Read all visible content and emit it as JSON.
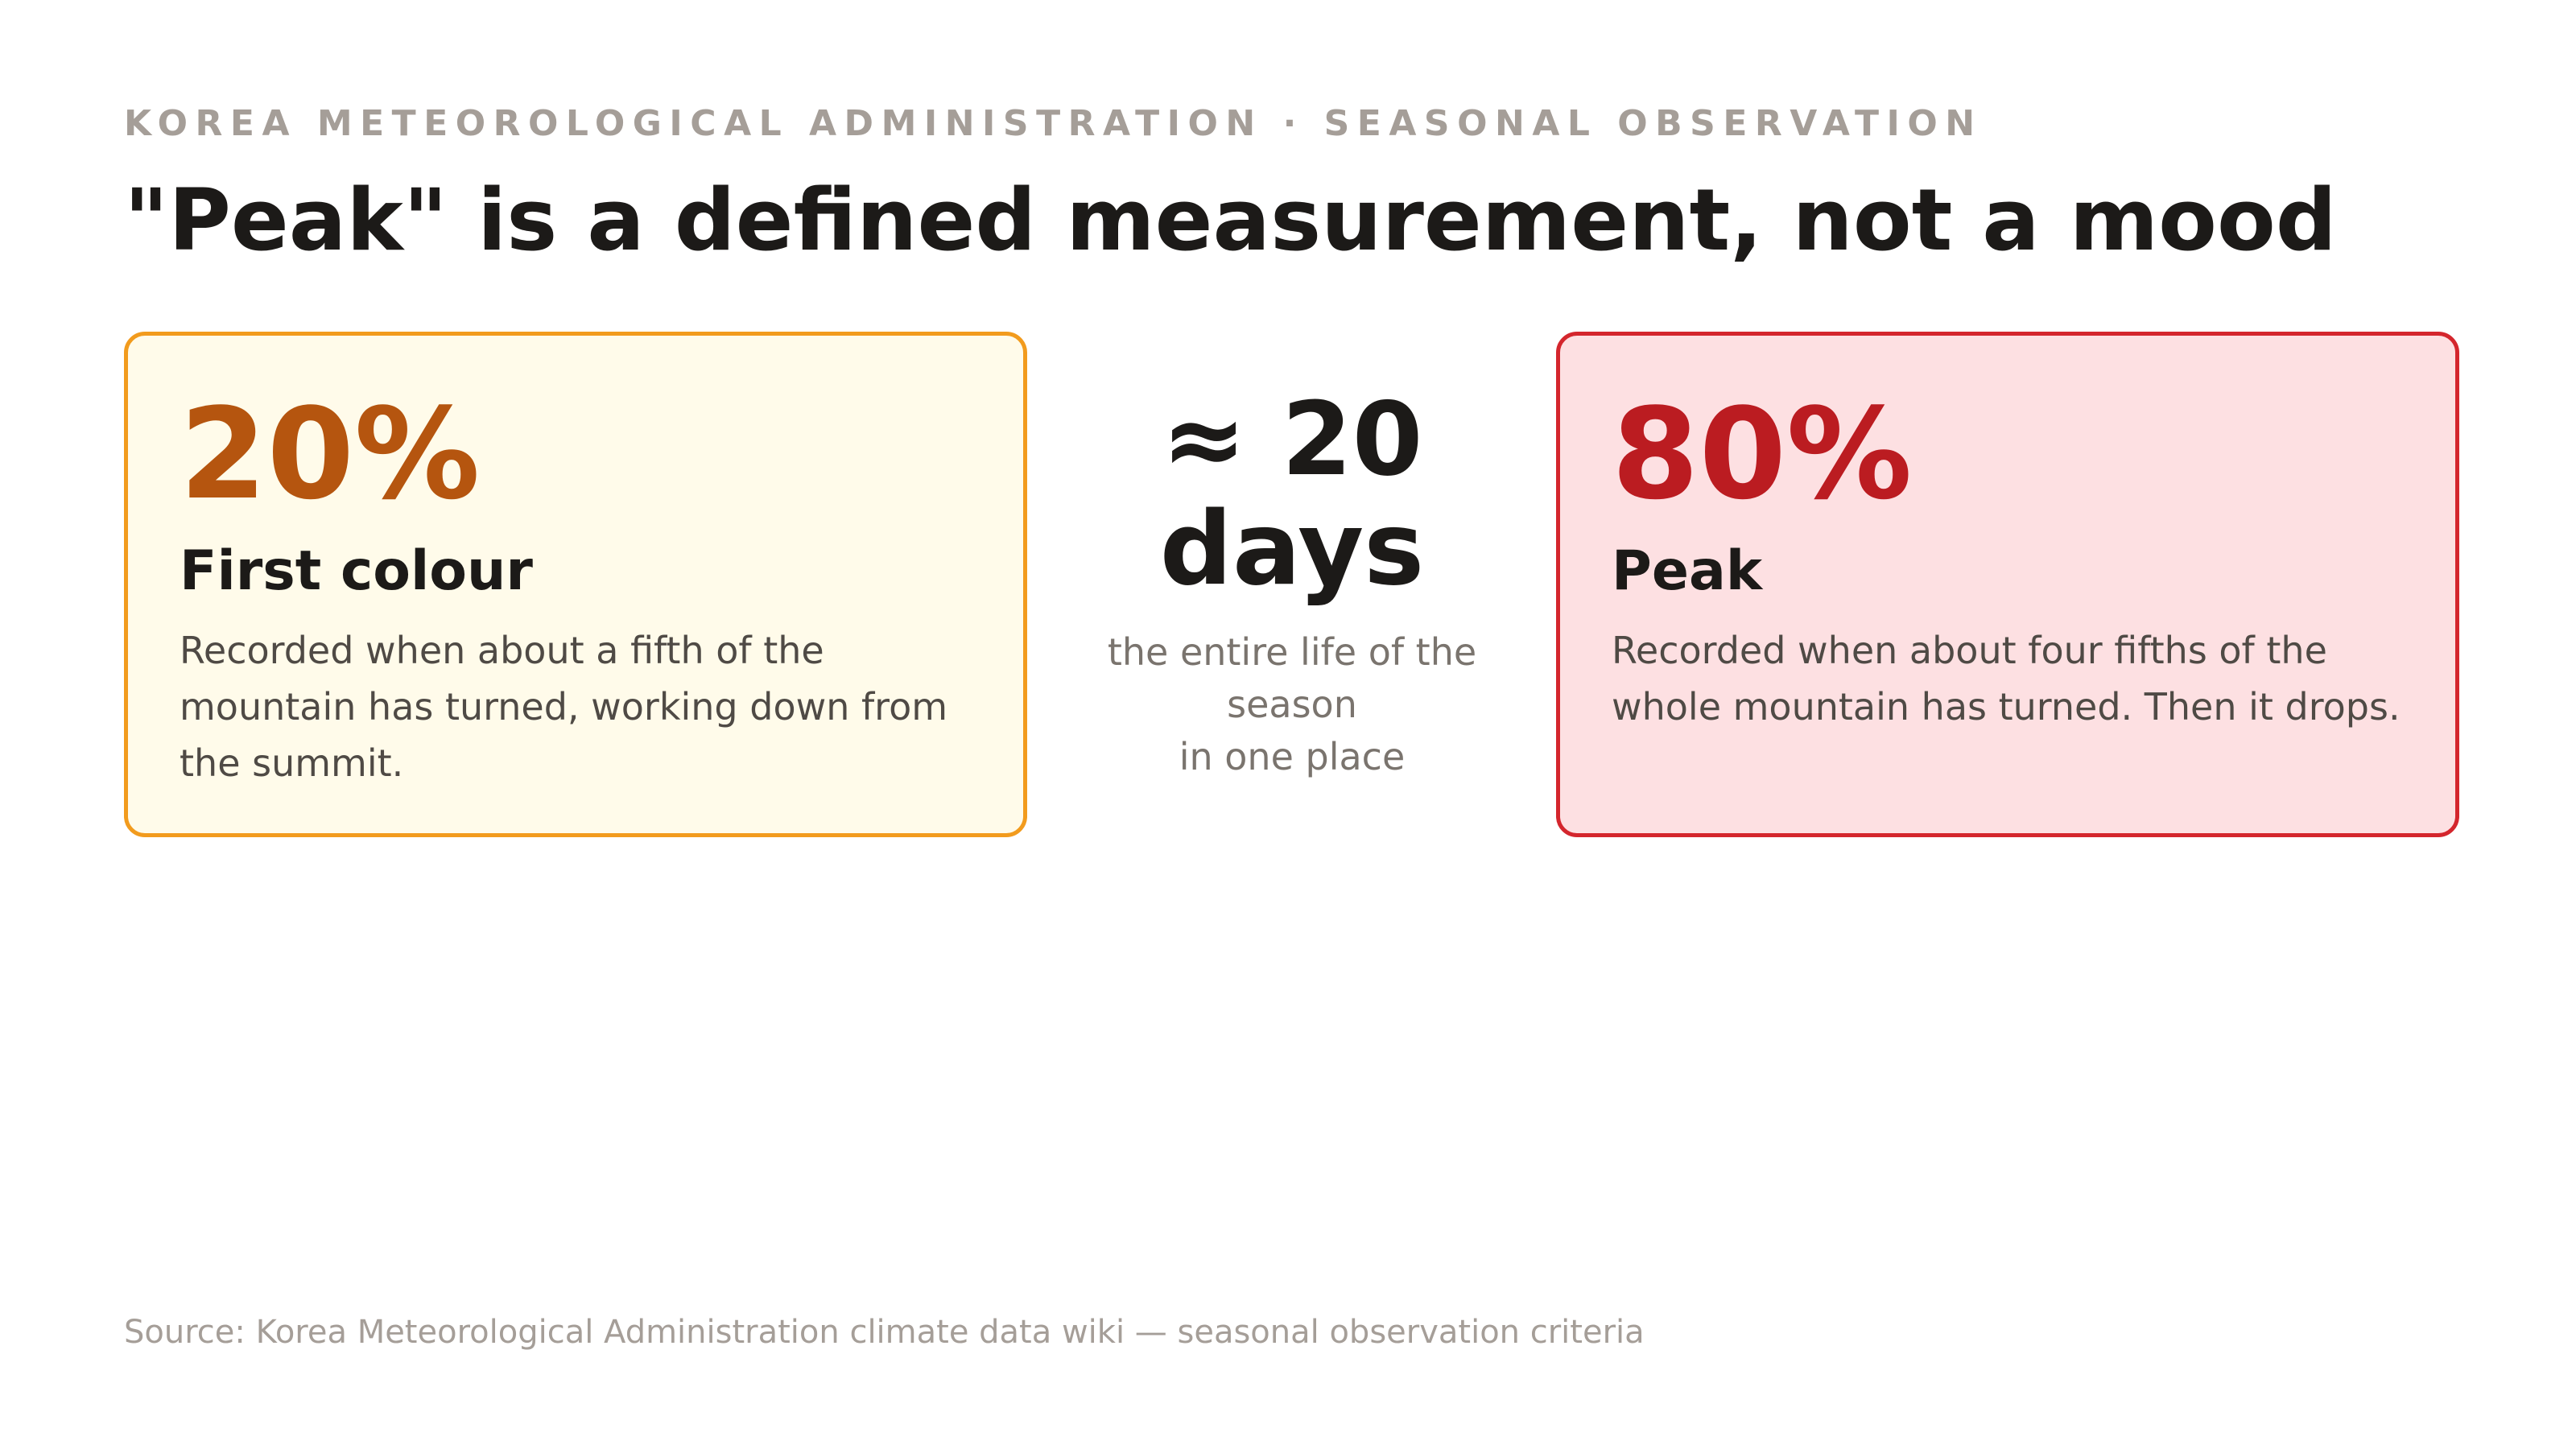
{
  "header": {
    "kicker": "KOREA METEOROLOGICAL ADMINISTRATION · SEASONAL OBSERVATION",
    "title": "\"Peak\" is a defined measurement, not a mood"
  },
  "cards": [
    {
      "percent": "20%",
      "fraction_value": 0.2,
      "name": "First colour",
      "description": "Recorded when about a fifth of the mountain has turned, working down from the summit.",
      "accent_color": "#b5550f",
      "border_color": "#f29b1d",
      "background_color": "#fffbea"
    },
    {
      "percent": "80%",
      "fraction_value": 0.8,
      "name": "Peak",
      "description": "Recorded when about four fifths of the whole mountain has turned. Then it drops.",
      "accent_color": "#bb1c21",
      "border_color": "#d4262d",
      "background_color": "#fde0e2"
    }
  ],
  "middle": {
    "line1": "≈ 20",
    "line2": "days",
    "sub_line1": "the entire life of the",
    "sub_line2": "season",
    "sub_line3": "in one place"
  },
  "footer": {
    "source": "Source: Korea Meteorological Administration climate data wiki — seasonal observation criteria"
  }
}
